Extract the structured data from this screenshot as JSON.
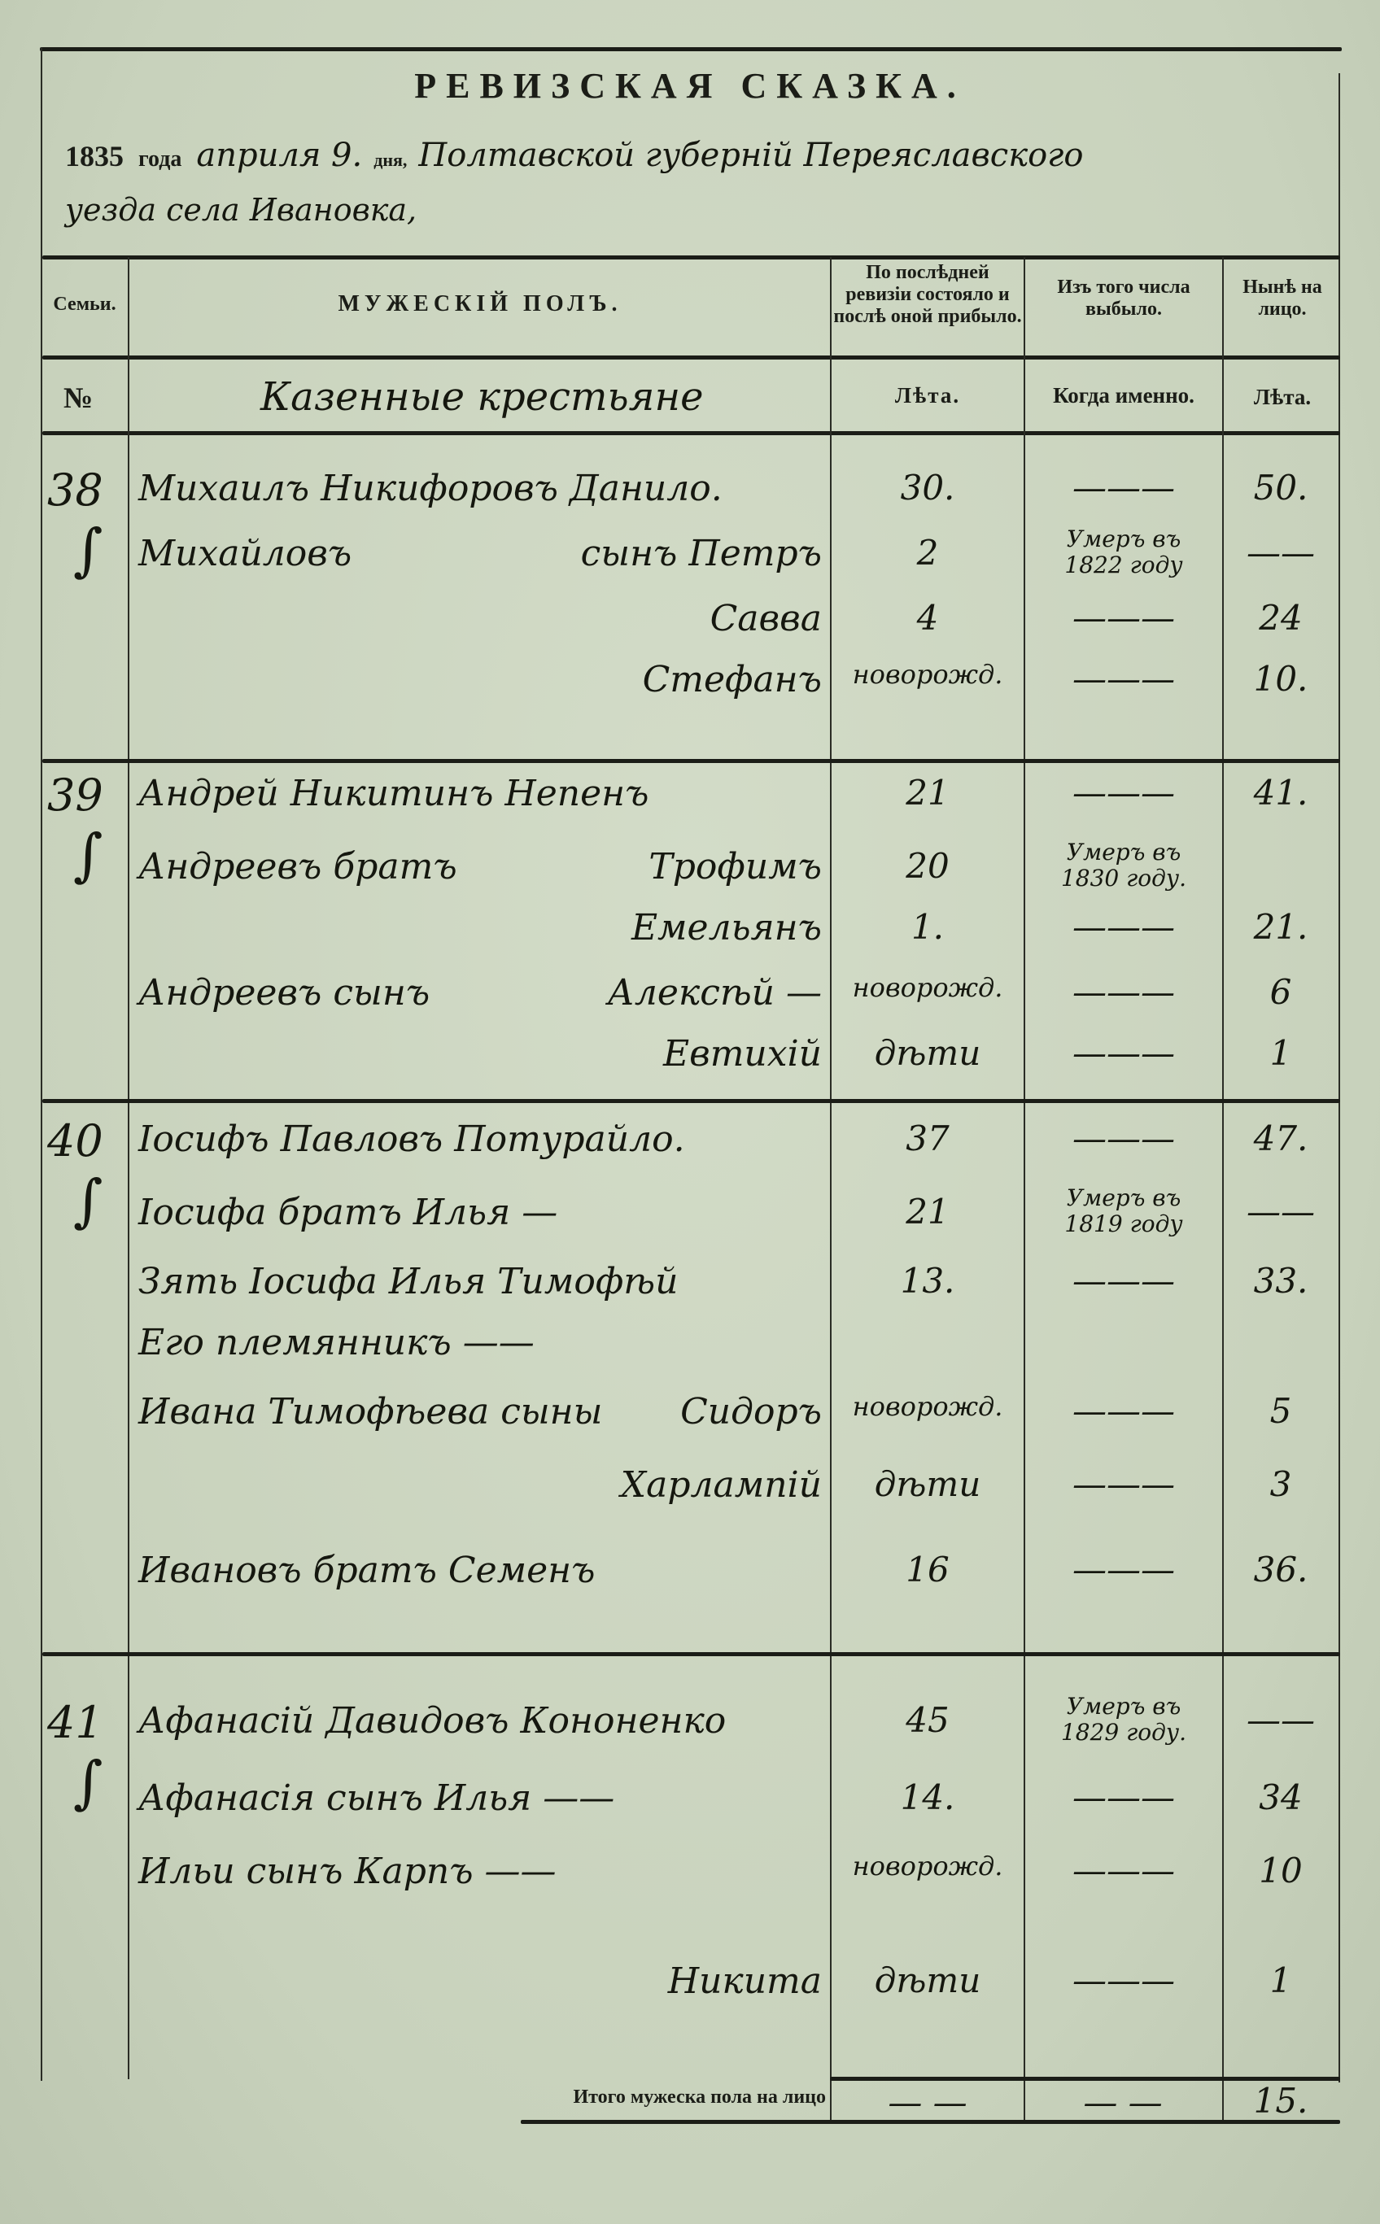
{
  "document": {
    "title": "РЕВИЗСКАЯ СКАЗКА.",
    "intro": {
      "year": "1835",
      "year_label": "года",
      "date": "априля 9.",
      "day_label": "дня,",
      "place_line1": "Полтавской губерній Переяславского",
      "place_line2": "уезда села Ивановка,"
    },
    "headers": {
      "family": "Семьи.",
      "male": "МУЖЕСКІЙ ПОЛЪ.",
      "last_revision": "По послѣдней ревизіи состояло и послѣ оной прибыло.",
      "dropped": "Изъ того числа выбыло.",
      "present": "Нынѣ на лицо."
    },
    "subheaders": {
      "number": "№",
      "category": "Казенные крестьяне",
      "years": "Лѣта.",
      "when": "Когда именно.",
      "years_present": "Лѣта."
    },
    "families": [
      {
        "number": "38",
        "rows": [
          {
            "left": "Михаилъ Никифоровъ Данило.",
            "right": "",
            "age": "30.",
            "died": "—",
            "now": "50."
          },
          {
            "left": "Михайловъ",
            "right": "сынъ Петръ",
            "age": "2",
            "died": "Умеръ въ 1822 году",
            "now": "—"
          },
          {
            "left": "",
            "right": "Савва",
            "age": "4",
            "died": "—",
            "now": "24"
          },
          {
            "left": "",
            "right": "Стефанъ",
            "age": "новорожд.",
            "died": "—",
            "now": "10."
          }
        ]
      },
      {
        "number": "39",
        "rows": [
          {
            "left": "Андрей Никитинъ Непенъ",
            "right": "",
            "age": "21",
            "died": "—",
            "now": "41."
          },
          {
            "left": "Андреевъ братъ",
            "right": "Трофимъ",
            "age": "20",
            "died": "Умеръ въ 1830 году.",
            "now": ""
          },
          {
            "left": "",
            "right": "Емельянъ",
            "age": "1.",
            "died": "—",
            "now": "21."
          },
          {
            "left": "Андреевъ сынъ",
            "right": "Алексѣй —",
            "age": "новорожд.",
            "died": "—",
            "now": "6"
          },
          {
            "left": "",
            "right": "Евтихій",
            "age": "дѣти",
            "died": "—",
            "now": "1"
          }
        ]
      },
      {
        "number": "40",
        "rows": [
          {
            "left": "Іосифъ Павловъ Потурайло.",
            "right": "",
            "age": "37",
            "died": "—",
            "now": "47."
          },
          {
            "left": "Іосифа братъ Илья —",
            "right": "",
            "age": "21",
            "died": "Умеръ въ 1819 году",
            "now": "—"
          },
          {
            "left": "Зять Іосифа Илья Тимофѣй",
            "right": "",
            "age": "13.",
            "died": "—",
            "now": "33."
          },
          {
            "left": "Его племянникъ ——",
            "right": "",
            "age": "",
            "died": "",
            "now": ""
          },
          {
            "left": "Ивана Тимофѣева сыны",
            "right": "Сидоръ",
            "age": "новорожд.",
            "died": "—",
            "now": "5"
          },
          {
            "left": "",
            "right": "Харлампій",
            "age": "дѣти",
            "died": "—",
            "now": "3"
          },
          {
            "left": "Ивановъ братъ Семенъ",
            "right": "",
            "age": "16",
            "died": "—",
            "now": "36."
          }
        ]
      },
      {
        "number": "41",
        "rows": [
          {
            "left": "Афанасій Давидовъ Кононенко",
            "right": "",
            "age": "45",
            "died": "Умеръ въ 1829 году.",
            "now": "—"
          },
          {
            "left": "Афанасія сынъ Илья ——",
            "right": "",
            "age": "14.",
            "died": "—",
            "now": "34"
          },
          {
            "left": "Ильи сынъ Карпъ ——",
            "right": "",
            "age": "новорожд.",
            "died": "—",
            "now": "10"
          },
          {
            "left": "",
            "right": "Никита",
            "age": "дѣти",
            "died": "—",
            "now": "1"
          }
        ]
      }
    ],
    "total": {
      "label": "Итого мужеска пола на лицо",
      "last_revision": "— —",
      "dropped": "— —",
      "present": "15."
    }
  },
  "colors": {
    "paper": "#cdd7c2",
    "ink": "#1b1d17"
  }
}
